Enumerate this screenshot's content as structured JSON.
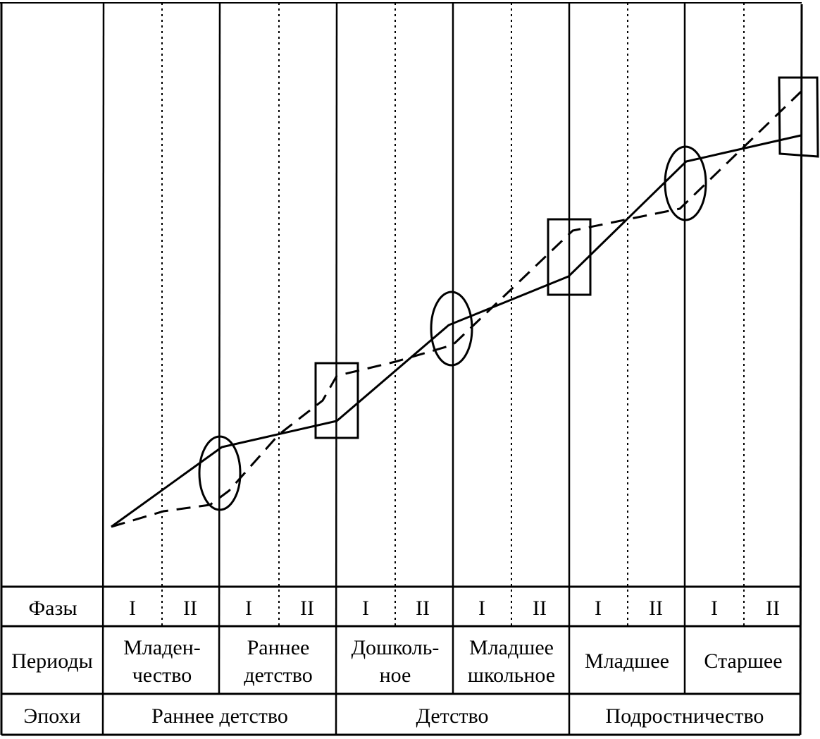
{
  "rows": {
    "phases_label": "Фазы",
    "periods_label": "Периоды",
    "epochs_label": "Эпохи"
  },
  "phases": [
    "I",
    "II",
    "I",
    "II",
    "I",
    "II",
    "I",
    "II",
    "I",
    "II",
    "I",
    "II"
  ],
  "periods": [
    {
      "line1": "Младен-",
      "line2": "чество"
    },
    {
      "line1": "Раннее",
      "line2": "детство"
    },
    {
      "line1": "Дошколь-",
      "line2": "ное"
    },
    {
      "line1": "Младшее",
      "line2": "школьное"
    },
    {
      "line1": "Младшее",
      "line2": ""
    },
    {
      "line1": "Старшее",
      "line2": ""
    }
  ],
  "epochs": [
    "Раннее детство",
    "Детство",
    "Подростничество"
  ],
  "chart_data": {
    "type": "line",
    "categories": [
      "I",
      "II",
      "I",
      "II",
      "I",
      "II",
      "I",
      "II",
      "I",
      "II",
      "I",
      "II"
    ],
    "series": [
      {
        "style": "solid",
        "color": "#000000"
      },
      {
        "style": "dashed",
        "color": "#000000"
      }
    ],
    "markers": [
      {
        "shape": "ellipse",
        "epoch": "Раннее детство",
        "boundary": "Младенчество / Раннее детство"
      },
      {
        "shape": "rectangle",
        "epoch": "Раннее детство",
        "boundary": "Раннее детство / Детство"
      },
      {
        "shape": "ellipse",
        "epoch": "Детство",
        "boundary": "Дошкольное / Младшее школьное"
      },
      {
        "shape": "rectangle",
        "epoch": "Детство",
        "boundary": "Детство / Подростничество"
      },
      {
        "shape": "ellipse",
        "epoch": "Подростничество",
        "boundary": "Младшее / Старшее"
      },
      {
        "shape": "rectangle",
        "epoch": "Подростничество",
        "boundary": "end"
      }
    ],
    "grid": true,
    "legend": "none"
  }
}
